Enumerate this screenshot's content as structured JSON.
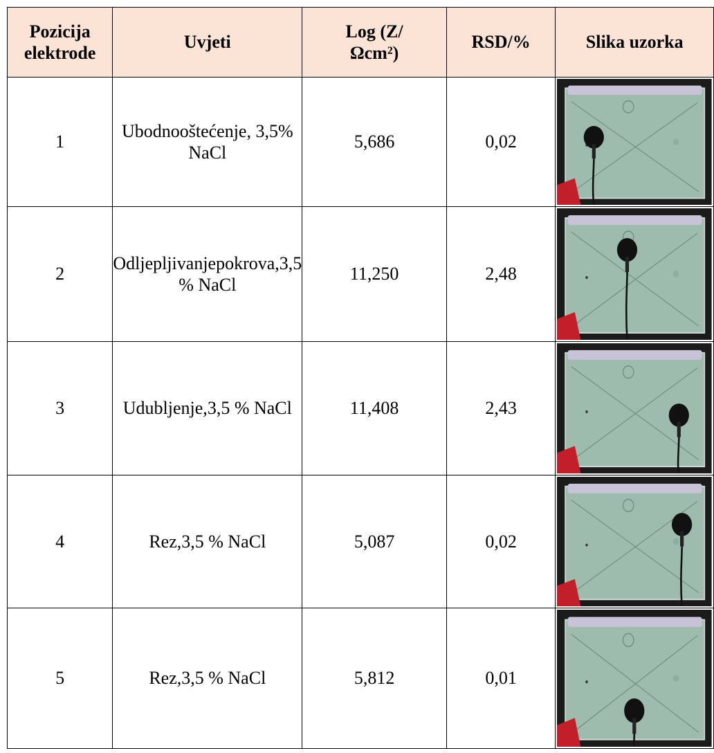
{
  "table": {
    "header": [
      "Pozicija elektrode",
      "Uvjeti",
      "Log (Z/Ωcm²)",
      "RSD/%",
      "Slika uzorka"
    ],
    "rows": [
      [
        "1",
        [
          "Ubodno",
          "oštećenje, 3,5",
          "% NaCl"
        ],
        "5,686",
        "0,02"
      ],
      [
        "2",
        [
          "Odljepljivanje",
          "pokrova,",
          "3,5 % NaCl"
        ],
        "11,250",
        "2,48"
      ],
      [
        "3",
        [
          "Udubljenje,",
          "3,5 % NaCl"
        ],
        "11,408",
        "2,43"
      ],
      [
        "4",
        [
          "Rez,",
          "3,5 % NaCl"
        ],
        "5,087",
        "0,02"
      ],
      [
        "5",
        [
          "Rez,",
          "3,5 % NaCl"
        ],
        "5,812",
        "0,01"
      ]
    ]
  }
}
